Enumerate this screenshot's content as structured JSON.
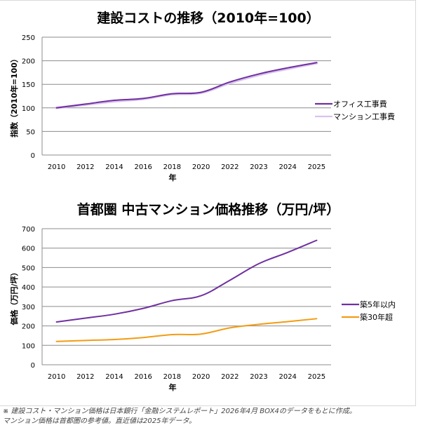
{
  "chart_data": [
    {
      "type": "line",
      "title": "建設コストの推移（2010年=100）",
      "xlabel": "年",
      "ylabel": "指数（2010年=100）",
      "categories": [
        "2010",
        "2012",
        "2014",
        "2016",
        "2018",
        "2020",
        "2022",
        "2023",
        "2024",
        "2025"
      ],
      "ylim": [
        0,
        250
      ],
      "yticks": [
        0,
        50,
        100,
        150,
        200,
        250
      ],
      "grid": true,
      "legend_position": "right",
      "series": [
        {
          "name": "オフィス工事費",
          "color": "#7030a0",
          "values": [
            100,
            108,
            116,
            120,
            130,
            133,
            155,
            172,
            185,
            196
          ]
        },
        {
          "name": "マンション工事費",
          "color": "#d9c2ec",
          "values": [
            100,
            107,
            114,
            119,
            129,
            132,
            153,
            170,
            183,
            195
          ]
        }
      ]
    },
    {
      "type": "line",
      "title": "首都圏 中古マンション価格推移（万円/坪）",
      "xlabel": "年",
      "ylabel": "価格（万円/坪）",
      "categories": [
        "2010",
        "2012",
        "2014",
        "2016",
        "2018",
        "2020",
        "2022",
        "2023",
        "2024",
        "2025"
      ],
      "ylim": [
        0,
        700
      ],
      "yticks": [
        0,
        100,
        200,
        300,
        400,
        500,
        600,
        700
      ],
      "grid": true,
      "legend_position": "right",
      "series": [
        {
          "name": "築5年以内",
          "color": "#7030a0",
          "values": [
            220,
            240,
            260,
            290,
            330,
            355,
            435,
            520,
            578,
            640
          ]
        },
        {
          "name": "築30年超",
          "color": "#f39c12",
          "values": [
            120,
            125,
            130,
            140,
            155,
            158,
            190,
            208,
            222,
            237
          ]
        }
      ]
    }
  ],
  "footnote": {
    "line1": "※ 建設コスト・マンション価格は日本銀行「金融システムレポート」2026年4月 BOX4のデータをもとに作成。",
    "line2": "マンション価格は首都圏の参考値。直近値は2025年データ。"
  }
}
